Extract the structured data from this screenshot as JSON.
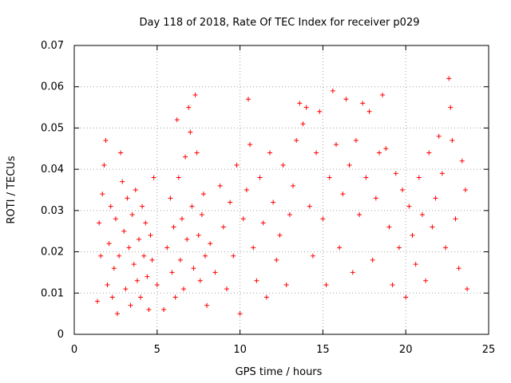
{
  "chart_data": {
    "type": "scatter",
    "title": "Day 118 of 2018, Rate Of TEC Index for receiver p029",
    "xlabel": "GPS time / hours",
    "ylabel": "ROTI / TECUs",
    "xlim": [
      0,
      25
    ],
    "ylim": [
      0,
      0.07
    ],
    "x_ticks": [
      0,
      5,
      10,
      15,
      20,
      25
    ],
    "x_tick_labels": [
      "0",
      "5",
      "10",
      "15",
      "20",
      "25"
    ],
    "y_ticks": [
      0,
      0.01,
      0.02,
      0.03,
      0.04,
      0.05,
      0.06,
      0.07
    ],
    "y_tick_labels": [
      "0",
      "0.01",
      "0.02",
      "0.03",
      "0.04",
      "0.05",
      "0.06",
      "0.07"
    ],
    "grid": true,
    "marker": "+",
    "series": [
      {
        "name": "ROTI",
        "color": "#ff0000",
        "points": [
          [
            1.4,
            0.008
          ],
          [
            1.5,
            0.027
          ],
          [
            1.6,
            0.019
          ],
          [
            1.7,
            0.034
          ],
          [
            1.8,
            0.041
          ],
          [
            1.9,
            0.047
          ],
          [
            2.0,
            0.012
          ],
          [
            2.1,
            0.022
          ],
          [
            2.2,
            0.031
          ],
          [
            2.3,
            0.009
          ],
          [
            2.4,
            0.016
          ],
          [
            2.5,
            0.028
          ],
          [
            2.6,
            0.005
          ],
          [
            2.7,
            0.019
          ],
          [
            2.8,
            0.044
          ],
          [
            2.9,
            0.037
          ],
          [
            3.0,
            0.025
          ],
          [
            3.1,
            0.011
          ],
          [
            3.2,
            0.033
          ],
          [
            3.3,
            0.021
          ],
          [
            3.4,
            0.007
          ],
          [
            3.5,
            0.029
          ],
          [
            3.6,
            0.017
          ],
          [
            3.7,
            0.035
          ],
          [
            3.8,
            0.013
          ],
          [
            3.9,
            0.023
          ],
          [
            4.0,
            0.009
          ],
          [
            4.1,
            0.031
          ],
          [
            4.2,
            0.019
          ],
          [
            4.3,
            0.027
          ],
          [
            4.4,
            0.014
          ],
          [
            4.5,
            0.006
          ],
          [
            4.6,
            0.024
          ],
          [
            4.7,
            0.018
          ],
          [
            4.8,
            0.038
          ],
          [
            5.0,
            0.012
          ],
          [
            5.4,
            0.006
          ],
          [
            5.6,
            0.021
          ],
          [
            5.8,
            0.033
          ],
          [
            5.9,
            0.015
          ],
          [
            6.0,
            0.026
          ],
          [
            6.1,
            0.009
          ],
          [
            6.2,
            0.052
          ],
          [
            6.3,
            0.038
          ],
          [
            6.4,
            0.018
          ],
          [
            6.5,
            0.028
          ],
          [
            6.6,
            0.011
          ],
          [
            6.7,
            0.043
          ],
          [
            6.8,
            0.023
          ],
          [
            6.9,
            0.055
          ],
          [
            7.0,
            0.049
          ],
          [
            7.1,
            0.031
          ],
          [
            7.2,
            0.016
          ],
          [
            7.3,
            0.058
          ],
          [
            7.4,
            0.044
          ],
          [
            7.5,
            0.024
          ],
          [
            7.6,
            0.013
          ],
          [
            7.7,
            0.029
          ],
          [
            7.8,
            0.034
          ],
          [
            7.9,
            0.019
          ],
          [
            8.0,
            0.007
          ],
          [
            8.2,
            0.022
          ],
          [
            8.5,
            0.015
          ],
          [
            8.8,
            0.036
          ],
          [
            9.0,
            0.026
          ],
          [
            9.2,
            0.011
          ],
          [
            9.4,
            0.032
          ],
          [
            9.6,
            0.019
          ],
          [
            9.8,
            0.041
          ],
          [
            10.0,
            0.005
          ],
          [
            10.2,
            0.028
          ],
          [
            10.4,
            0.035
          ],
          [
            10.5,
            0.057
          ],
          [
            10.6,
            0.046
          ],
          [
            10.8,
            0.021
          ],
          [
            11.0,
            0.013
          ],
          [
            11.2,
            0.038
          ],
          [
            11.4,
            0.027
          ],
          [
            11.6,
            0.009
          ],
          [
            11.8,
            0.044
          ],
          [
            12.0,
            0.032
          ],
          [
            12.2,
            0.018
          ],
          [
            12.4,
            0.024
          ],
          [
            12.6,
            0.041
          ],
          [
            12.8,
            0.012
          ],
          [
            13.0,
            0.029
          ],
          [
            13.2,
            0.036
          ],
          [
            13.4,
            0.047
          ],
          [
            13.6,
            0.056
          ],
          [
            13.8,
            0.051
          ],
          [
            14.0,
            0.055
          ],
          [
            14.2,
            0.031
          ],
          [
            14.4,
            0.019
          ],
          [
            14.6,
            0.044
          ],
          [
            14.8,
            0.054
          ],
          [
            15.0,
            0.028
          ],
          [
            15.2,
            0.012
          ],
          [
            15.4,
            0.038
          ],
          [
            15.6,
            0.059
          ],
          [
            15.8,
            0.046
          ],
          [
            16.0,
            0.021
          ],
          [
            16.2,
            0.034
          ],
          [
            16.4,
            0.057
          ],
          [
            16.6,
            0.041
          ],
          [
            16.8,
            0.015
          ],
          [
            17.0,
            0.047
          ],
          [
            17.2,
            0.029
          ],
          [
            17.4,
            0.056
          ],
          [
            17.6,
            0.038
          ],
          [
            17.8,
            0.054
          ],
          [
            18.0,
            0.018
          ],
          [
            18.2,
            0.033
          ],
          [
            18.4,
            0.044
          ],
          [
            18.6,
            0.058
          ],
          [
            18.8,
            0.045
          ],
          [
            19.0,
            0.026
          ],
          [
            19.2,
            0.012
          ],
          [
            19.4,
            0.039
          ],
          [
            19.6,
            0.021
          ],
          [
            19.8,
            0.035
          ],
          [
            20.0,
            0.009
          ],
          [
            20.2,
            0.031
          ],
          [
            20.4,
            0.024
          ],
          [
            20.6,
            0.017
          ],
          [
            20.8,
            0.038
          ],
          [
            21.0,
            0.029
          ],
          [
            21.2,
            0.013
          ],
          [
            21.4,
            0.044
          ],
          [
            21.6,
            0.026
          ],
          [
            21.8,
            0.033
          ],
          [
            22.0,
            0.048
          ],
          [
            22.2,
            0.039
          ],
          [
            22.4,
            0.021
          ],
          [
            22.6,
            0.062
          ],
          [
            22.7,
            0.055
          ],
          [
            22.8,
            0.047
          ],
          [
            23.0,
            0.028
          ],
          [
            23.2,
            0.016
          ],
          [
            23.4,
            0.042
          ],
          [
            23.6,
            0.035
          ],
          [
            23.7,
            0.011
          ]
        ]
      }
    ]
  }
}
